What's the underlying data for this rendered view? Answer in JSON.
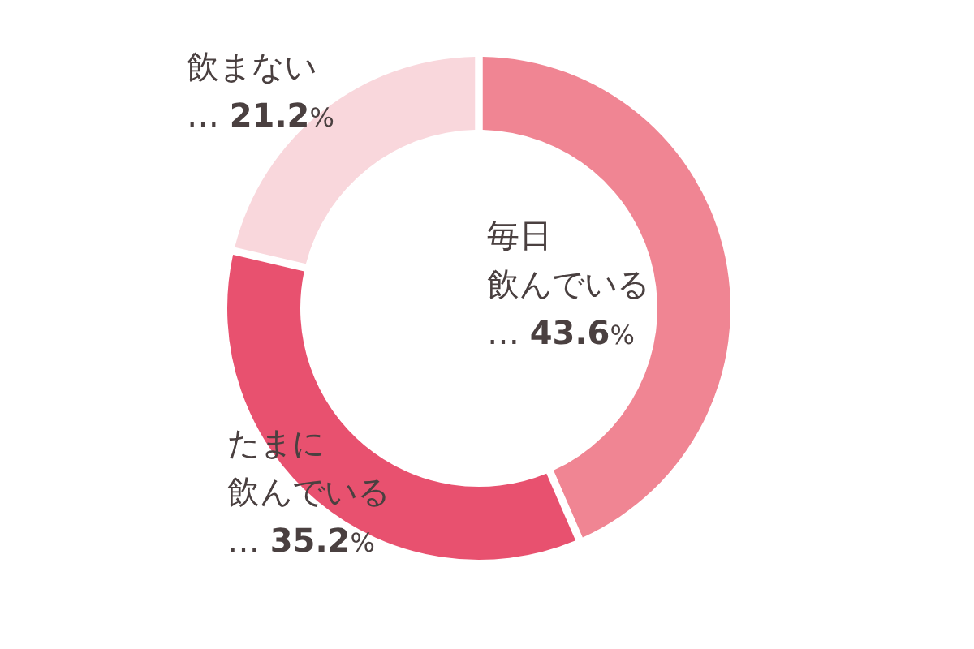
{
  "chart_data": {
    "type": "donut",
    "categories": [
      "毎日飲んでいる",
      "たまに飲んでいる",
      "飲まない"
    ],
    "values": [
      43.6,
      35.2,
      21.2
    ],
    "colors": [
      "#f08593",
      "#e8516f",
      "#f9d7dc"
    ],
    "value_labels": [
      "… 43.6%",
      "… 35.2%",
      "… 21.2%"
    ]
  }
}
